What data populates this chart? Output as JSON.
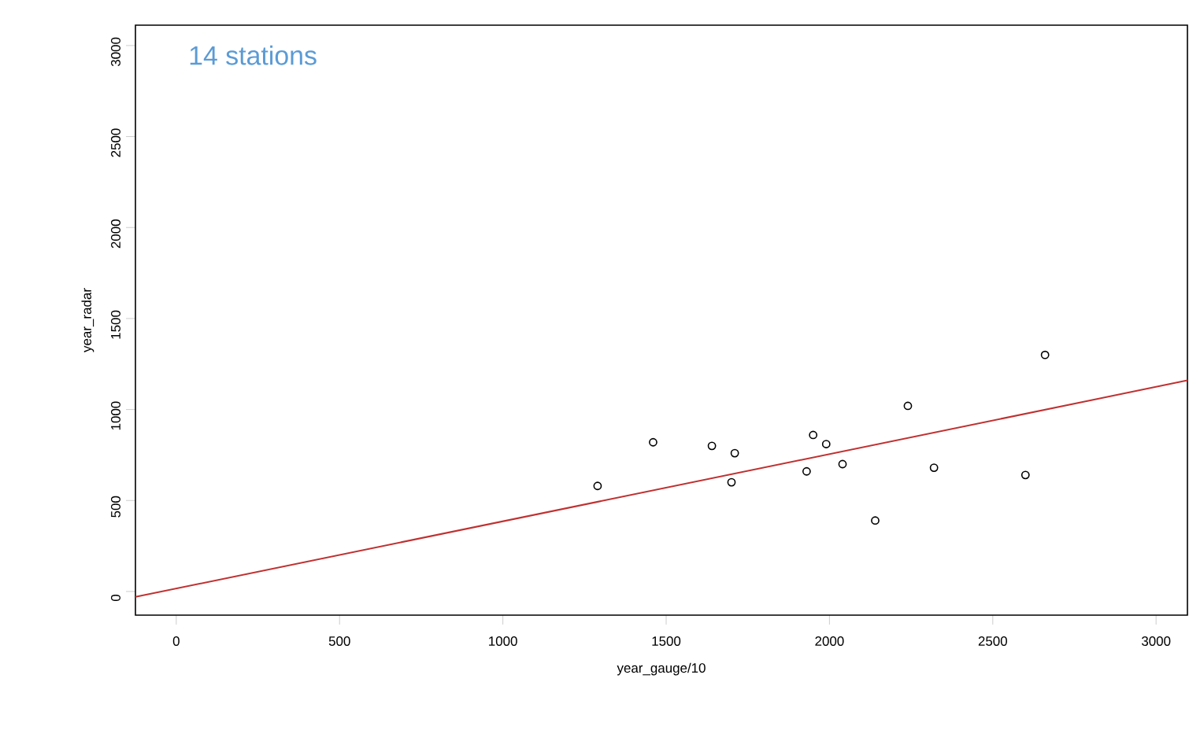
{
  "chart_data": {
    "type": "scatter",
    "xlabel": "year_gauge/10",
    "ylabel": "year_radar",
    "annotations": [
      "14 stations"
    ],
    "xlim": [
      -125,
      3096
    ],
    "ylim": [
      -130,
      3112
    ],
    "xticks": [
      0,
      500,
      1000,
      1500,
      2000,
      2500,
      3000
    ],
    "yticks": [
      0,
      500,
      1000,
      1500,
      2000,
      2500,
      3000
    ],
    "grid": false,
    "marker": "circle",
    "series": [
      {
        "color": "#000000",
        "x": [
          1290,
          1460,
          1640,
          1710,
          1700,
          1930,
          1950,
          1990,
          2040,
          2140,
          2240,
          2320,
          2600,
          2660
        ],
        "values": [
          580,
          820,
          800,
          760,
          600,
          660,
          860,
          810,
          700,
          390,
          1020,
          680,
          640,
          1300
        ]
      },
      {
        "type": "line",
        "color": "#c03030",
        "marker": "none",
        "line_style": "solid",
        "x": [
          -125,
          3096
        ],
        "values": [
          -30,
          1160
        ]
      }
    ]
  }
}
